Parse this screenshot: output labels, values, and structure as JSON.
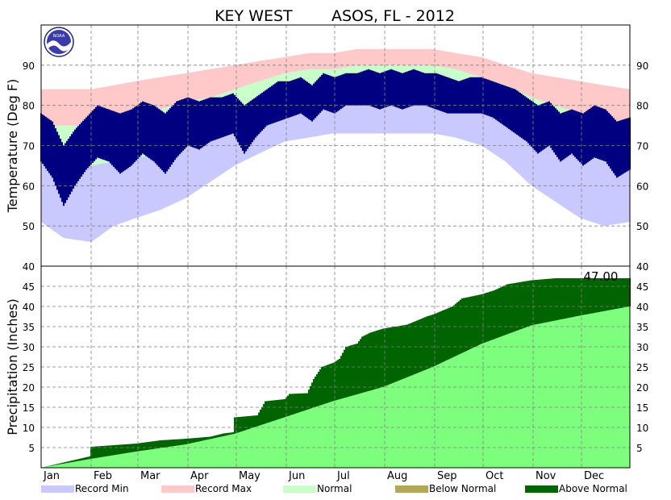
{
  "title": "KEY WEST        ASOS, FL - 2012",
  "logo_text": "NOAA",
  "colors": {
    "record_min": "#c9c9ff",
    "record_max": "#ffc9c9",
    "normal": "#c9ffc9",
    "observed_temp": "#000080",
    "below_normal": "#b0a85a",
    "above_normal": "#006400",
    "normal_precip": "#7dff7d"
  },
  "chart_data": [
    {
      "type": "bar",
      "name": "temperature",
      "ylabel": "Temperature (Deg F)",
      "ylim": [
        40,
        100
      ],
      "yticks": [
        40,
        50,
        60,
        70,
        80,
        90
      ],
      "xlim": [
        1,
        366
      ],
      "grid": true,
      "series": [
        {
          "name": "Record Min",
          "points": [
            [
              1,
              51
            ],
            [
              15,
              47
            ],
            [
              32,
              46
            ],
            [
              46,
              50
            ],
            [
              60,
              52
            ],
            [
              75,
              54
            ],
            [
              91,
              57
            ],
            [
              106,
              61
            ],
            [
              121,
              65
            ],
            [
              136,
              68
            ],
            [
              152,
              71
            ],
            [
              167,
              72
            ],
            [
              182,
              73
            ],
            [
              197,
              73
            ],
            [
              213,
              73
            ],
            [
              228,
              73
            ],
            [
              244,
              73
            ],
            [
              258,
              72
            ],
            [
              274,
              70
            ],
            [
              289,
              66
            ],
            [
              305,
              60
            ],
            [
              320,
              56
            ],
            [
              335,
              52
            ],
            [
              350,
              50
            ],
            [
              366,
              51
            ]
          ]
        },
        {
          "name": "Record Max",
          "points": [
            [
              1,
              84
            ],
            [
              15,
              84
            ],
            [
              32,
              84
            ],
            [
              46,
              85
            ],
            [
              60,
              86
            ],
            [
              75,
              87
            ],
            [
              91,
              88
            ],
            [
              106,
              89
            ],
            [
              121,
              90
            ],
            [
              136,
              91
            ],
            [
              152,
              92
            ],
            [
              167,
              93
            ],
            [
              182,
              93
            ],
            [
              197,
              94
            ],
            [
              213,
              94
            ],
            [
              228,
              94
            ],
            [
              244,
              94
            ],
            [
              258,
              93
            ],
            [
              274,
              92
            ],
            [
              289,
              90
            ],
            [
              305,
              88
            ],
            [
              320,
              87
            ],
            [
              335,
              86
            ],
            [
              350,
              85
            ],
            [
              366,
              84
            ]
          ]
        },
        {
          "name": "Normal High",
          "points": [
            [
              1,
              75
            ],
            [
              15,
              75
            ],
            [
              32,
              75
            ],
            [
              46,
              76
            ],
            [
              60,
              77
            ],
            [
              75,
              79
            ],
            [
              91,
              81
            ],
            [
              106,
              82
            ],
            [
              121,
              84
            ],
            [
              136,
              86
            ],
            [
              152,
              88
            ],
            [
              167,
              89
            ],
            [
              182,
              89
            ],
            [
              197,
              90
            ],
            [
              213,
              90
            ],
            [
              228,
              90
            ],
            [
              244,
              90
            ],
            [
              258,
              89
            ],
            [
              274,
              87
            ],
            [
              289,
              85
            ],
            [
              305,
              82
            ],
            [
              320,
              80
            ],
            [
              335,
              78
            ],
            [
              350,
              76
            ],
            [
              366,
              75
            ]
          ]
        },
        {
          "name": "Normal Low",
          "points": [
            [
              1,
              65
            ],
            [
              15,
              65
            ],
            [
              32,
              65
            ],
            [
              46,
              66
            ],
            [
              60,
              67
            ],
            [
              75,
              68
            ],
            [
              91,
              70
            ],
            [
              106,
              72
            ],
            [
              121,
              74
            ],
            [
              136,
              76
            ],
            [
              152,
              78
            ],
            [
              167,
              79
            ],
            [
              182,
              80
            ],
            [
              197,
              80
            ],
            [
              213,
              80
            ],
            [
              228,
              80
            ],
            [
              244,
              80
            ],
            [
              258,
              79
            ],
            [
              274,
              78
            ],
            [
              289,
              76
            ],
            [
              305,
              73
            ],
            [
              320,
              71
            ],
            [
              335,
              68
            ],
            [
              350,
              66
            ],
            [
              366,
              65
            ]
          ]
        },
        {
          "name": "Observed High",
          "points": [
            [
              1,
              78
            ],
            [
              8,
              76
            ],
            [
              15,
              70
            ],
            [
              22,
              74
            ],
            [
              29,
              77
            ],
            [
              36,
              80
            ],
            [
              43,
              79
            ],
            [
              50,
              78
            ],
            [
              57,
              79
            ],
            [
              64,
              81
            ],
            [
              71,
              80
            ],
            [
              78,
              78
            ],
            [
              85,
              81
            ],
            [
              92,
              82
            ],
            [
              99,
              81
            ],
            [
              106,
              82
            ],
            [
              113,
              82
            ],
            [
              120,
              83
            ],
            [
              127,
              80
            ],
            [
              134,
              82
            ],
            [
              141,
              84
            ],
            [
              148,
              86
            ],
            [
              155,
              86
            ],
            [
              162,
              87
            ],
            [
              169,
              85
            ],
            [
              176,
              88
            ],
            [
              183,
              87
            ],
            [
              190,
              88
            ],
            [
              197,
              88
            ],
            [
              204,
              89
            ],
            [
              211,
              88
            ],
            [
              218,
              89
            ],
            [
              225,
              88
            ],
            [
              232,
              89
            ],
            [
              239,
              88
            ],
            [
              246,
              88
            ],
            [
              253,
              87
            ],
            [
              260,
              86
            ],
            [
              267,
              87
            ],
            [
              274,
              87
            ],
            [
              281,
              86
            ],
            [
              288,
              85
            ],
            [
              295,
              84
            ],
            [
              302,
              82
            ],
            [
              309,
              80
            ],
            [
              316,
              81
            ],
            [
              323,
              78
            ],
            [
              330,
              79
            ],
            [
              337,
              78
            ],
            [
              344,
              80
            ],
            [
              351,
              79
            ],
            [
              358,
              76
            ],
            [
              366,
              77
            ]
          ]
        },
        {
          "name": "Observed Low",
          "points": [
            [
              1,
              66
            ],
            [
              8,
              62
            ],
            [
              15,
              55
            ],
            [
              22,
              60
            ],
            [
              29,
              64
            ],
            [
              36,
              67
            ],
            [
              43,
              66
            ],
            [
              50,
              63
            ],
            [
              57,
              65
            ],
            [
              64,
              68
            ],
            [
              71,
              66
            ],
            [
              78,
              63
            ],
            [
              85,
              67
            ],
            [
              92,
              70
            ],
            [
              99,
              69
            ],
            [
              106,
              71
            ],
            [
              113,
              72
            ],
            [
              120,
              73
            ],
            [
              127,
              68
            ],
            [
              134,
              72
            ],
            [
              141,
              75
            ],
            [
              148,
              76
            ],
            [
              155,
              77
            ],
            [
              162,
              78
            ],
            [
              169,
              76
            ],
            [
              176,
              79
            ],
            [
              183,
              78
            ],
            [
              190,
              80
            ],
            [
              197,
              80
            ],
            [
              204,
              80
            ],
            [
              211,
              79
            ],
            [
              218,
              80
            ],
            [
              225,
              79
            ],
            [
              232,
              80
            ],
            [
              239,
              80
            ],
            [
              246,
              79
            ],
            [
              253,
              78
            ],
            [
              260,
              78
            ],
            [
              267,
              78
            ],
            [
              274,
              78
            ],
            [
              281,
              77
            ],
            [
              288,
              75
            ],
            [
              295,
              73
            ],
            [
              302,
              71
            ],
            [
              309,
              68
            ],
            [
              316,
              70
            ],
            [
              323,
              66
            ],
            [
              330,
              68
            ],
            [
              337,
              65
            ],
            [
              344,
              67
            ],
            [
              351,
              66
            ],
            [
              358,
              62
            ],
            [
              366,
              64
            ]
          ]
        }
      ]
    },
    {
      "type": "area",
      "name": "precipitation",
      "ylabel": "Precipitation (Inches)",
      "ylim": [
        0,
        50
      ],
      "yticks": [
        5,
        10,
        15,
        20,
        25,
        30,
        35,
        40,
        45
      ],
      "xlim": [
        1,
        366
      ],
      "grid": true,
      "annotation": "47.00",
      "series": [
        {
          "name": "Normal",
          "points": [
            [
              1,
              0
            ],
            [
              32,
              2.2
            ],
            [
              60,
              4.0
            ],
            [
              91,
              5.8
            ],
            [
              121,
              8.4
            ],
            [
              152,
              12.5
            ],
            [
              182,
              16.5
            ],
            [
              213,
              20.0
            ],
            [
              244,
              25.0
            ],
            [
              274,
              30.7
            ],
            [
              305,
              35.3
            ],
            [
              335,
              37.7
            ],
            [
              366,
              40.0
            ]
          ]
        },
        {
          "name": "Observed",
          "points": [
            [
              1,
              0
            ],
            [
              31,
              2.8
            ],
            [
              32,
              5.2
            ],
            [
              60,
              6.0
            ],
            [
              75,
              6.8
            ],
            [
              91,
              7.2
            ],
            [
              106,
              7.7
            ],
            [
              114,
              8.5
            ],
            [
              120,
              8.8
            ],
            [
              121,
              12.5
            ],
            [
              135,
              13.0
            ],
            [
              140,
              16.5
            ],
            [
              152,
              17.0
            ],
            [
              155,
              18.3
            ],
            [
              166,
              18.5
            ],
            [
              170,
              22.0
            ],
            [
              175,
              25.0
            ],
            [
              182,
              26.0
            ],
            [
              186,
              27.0
            ],
            [
              190,
              30.0
            ],
            [
              197,
              30.8
            ],
            [
              200,
              32.5
            ],
            [
              205,
              33.5
            ],
            [
              213,
              34.5
            ],
            [
              228,
              35.5
            ],
            [
              240,
              37.5
            ],
            [
              244,
              38.0
            ],
            [
              256,
              40.0
            ],
            [
              262,
              42.0
            ],
            [
              274,
              43.0
            ],
            [
              282,
              44.0
            ],
            [
              290,
              45.5
            ],
            [
              305,
              46.5
            ],
            [
              320,
              47.0
            ],
            [
              366,
              47.0
            ]
          ]
        }
      ]
    }
  ],
  "months": [
    "Jan",
    "Feb",
    "Mar",
    "Apr",
    "May",
    "Jun",
    "Jul",
    "Aug",
    "Sep",
    "Oct",
    "Nov",
    "Dec"
  ],
  "month_starts": [
    1,
    32,
    61,
    92,
    122,
    153,
    183,
    214,
    245,
    275,
    306,
    336
  ],
  "legend": [
    {
      "label": "Record Min",
      "color": "#c9c9ff"
    },
    {
      "label": "Record Max",
      "color": "#ffc9c9"
    },
    {
      "label": "Normal",
      "color": "#c9ffc9"
    },
    {
      "label": "Below Normal",
      "color": "#b0a85a"
    },
    {
      "label": "Above Normal",
      "color": "#006400"
    }
  ]
}
